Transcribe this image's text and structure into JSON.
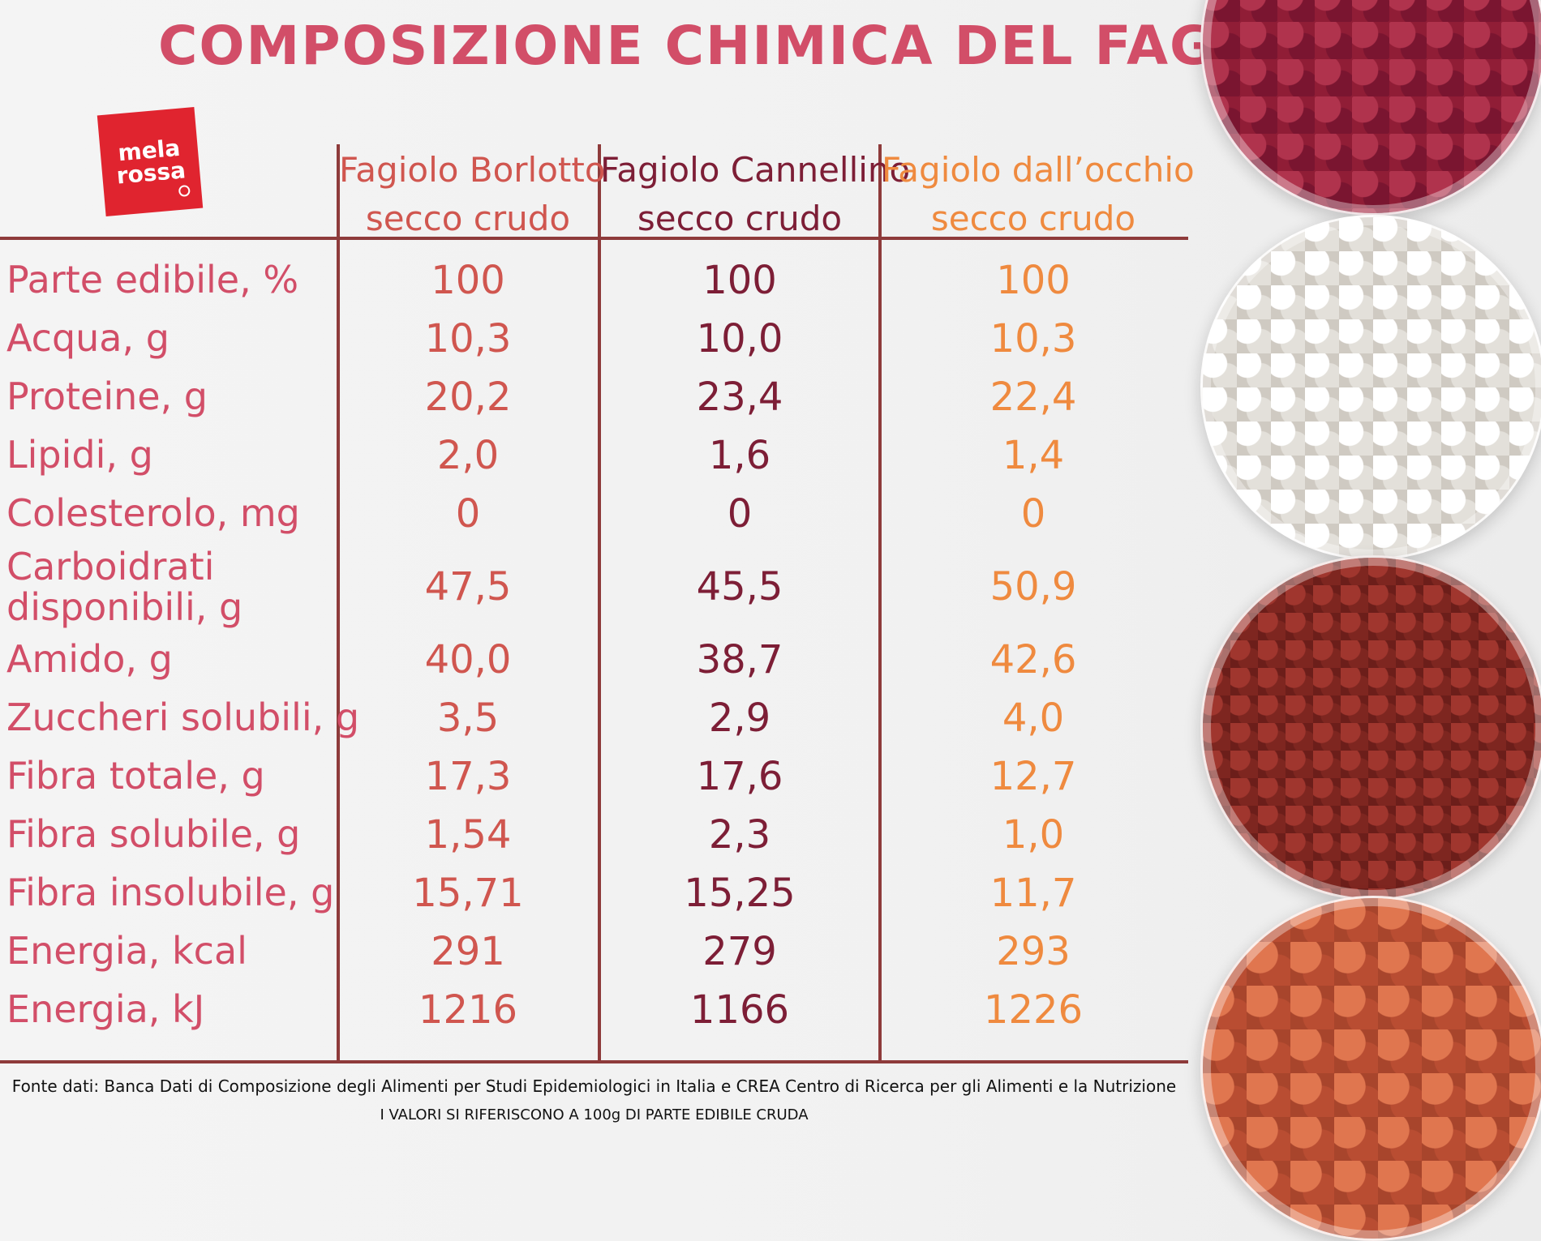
{
  "title": "COMPOSIZIONE CHIMICA DEL FAGIOLO",
  "logo": {
    "line1": "mela",
    "line2": "rossa"
  },
  "chart_data": {
    "type": "table",
    "columns": [
      {
        "name": "Fagiolo Borlotto",
        "sub": "secco crudo",
        "color": "#d0564f"
      },
      {
        "name": "Fagiolo Cannellino",
        "sub": "secco crudo",
        "color": "#7d1e36"
      },
      {
        "name": "Fagiolo dall’occhio",
        "sub": "secco crudo",
        "color": "#ef8a3f"
      }
    ],
    "rows": [
      {
        "label": "Parte edibile, %",
        "values": [
          "100",
          "100",
          "100"
        ]
      },
      {
        "label": "Acqua, g",
        "values": [
          "10,3",
          "10,0",
          "10,3"
        ]
      },
      {
        "label": "Proteine, g",
        "values": [
          "20,2",
          "23,4",
          "22,4"
        ]
      },
      {
        "label": "Lipidi, g",
        "values": [
          "2,0",
          "1,6",
          "1,4"
        ]
      },
      {
        "label": "Colesterolo, mg",
        "values": [
          "0",
          "0",
          "0"
        ]
      },
      {
        "label": "Carboidrati disponibili, g",
        "values": [
          "47,5",
          "45,5",
          "50,9"
        ]
      },
      {
        "label": "Amido, g",
        "values": [
          "40,0",
          "38,7",
          "42,6"
        ]
      },
      {
        "label": "Zuccheri solubili, g",
        "values": [
          "3,5",
          "2,9",
          "4,0"
        ]
      },
      {
        "label": "Fibra totale, g",
        "values": [
          "17,3",
          "17,6",
          "12,7"
        ]
      },
      {
        "label": "Fibra solubile, g",
        "values": [
          "1,54",
          "2,3",
          "1,0"
        ]
      },
      {
        "label": "Fibra insolubile, g",
        "values": [
          "15,71",
          "15,25",
          "11,7"
        ]
      },
      {
        "label": "Energia, kcal",
        "values": [
          "291",
          "279",
          "293"
        ]
      },
      {
        "label": "Energia, kJ",
        "values": [
          "1216",
          "1166",
          "1226"
        ]
      }
    ]
  },
  "source": "Fonte dati: Banca Dati di Composizione degli Alimenti per Studi Epidemiologici in Italia e CREA Centro di Ricerca per gli Alimenti e la Nutrizione",
  "note": "I VALORI SI RIFERISCONO A 100g DI PARTE EDIBILE CRUDA"
}
